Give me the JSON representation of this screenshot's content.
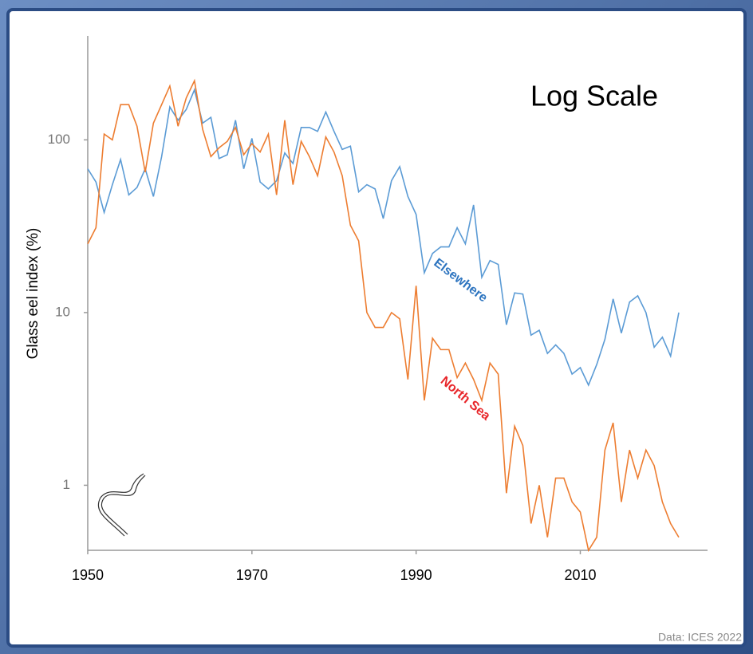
{
  "chart_data": {
    "type": "line",
    "annotation": "Log Scale",
    "y_label": "Glass eel index (%)",
    "source": "Data: ICES 2022",
    "log_y": true,
    "xlim": [
      1950,
      2025.5
    ],
    "xticks": [
      1950,
      1970,
      1990,
      2010
    ],
    "ylim": [
      0.42,
      400
    ],
    "yticks": [
      1,
      10,
      100
    ],
    "x": [
      1950,
      1951,
      1952,
      1953,
      1954,
      1955,
      1956,
      1957,
      1958,
      1959,
      1960,
      1961,
      1962,
      1963,
      1964,
      1965,
      1966,
      1967,
      1968,
      1969,
      1970,
      1971,
      1972,
      1973,
      1974,
      1975,
      1976,
      1977,
      1978,
      1979,
      1980,
      1981,
      1982,
      1983,
      1984,
      1985,
      1986,
      1987,
      1988,
      1989,
      1990,
      1991,
      1992,
      1993,
      1994,
      1995,
      1996,
      1997,
      1998,
      1999,
      2000,
      2001,
      2002,
      2003,
      2004,
      2005,
      2006,
      2007,
      2008,
      2009,
      2010,
      2011,
      2012,
      2013,
      2014,
      2015,
      2016,
      2017,
      2018,
      2019,
      2020,
      2021,
      2022
    ],
    "series": [
      {
        "name": "Elsewhere",
        "color": "#5b9bd5",
        "values": [
          68,
          57,
          38,
          55,
          77,
          48,
          53,
          68,
          47,
          80,
          155,
          130,
          150,
          195,
          125,
          135,
          78,
          82,
          130,
          68,
          102,
          57,
          52,
          58,
          84,
          73,
          118,
          118,
          112,
          145,
          112,
          88,
          92,
          50,
          55,
          52,
          35,
          58,
          70,
          47,
          37,
          17,
          22,
          24,
          24,
          31,
          25,
          42,
          16,
          20,
          19,
          8.5,
          13,
          12.8,
          7.4,
          7.9,
          5.8,
          6.5,
          5.8,
          4.4,
          4.8,
          3.8,
          5,
          7,
          12,
          7.6,
          11.5,
          12.5,
          10,
          6.3,
          7.2,
          5.6,
          10
        ]
      },
      {
        "name": "North Sea",
        "color": "#ed7d31",
        "values": [
          25,
          31,
          108,
          100,
          160,
          160,
          120,
          65,
          125,
          160,
          205,
          120,
          175,
          220,
          115,
          80,
          90,
          98,
          118,
          82,
          95,
          85,
          108,
          48,
          130,
          55,
          98,
          80,
          62,
          104,
          85,
          62,
          32,
          26,
          10,
          8.2,
          8.2,
          10,
          9.2,
          4.1,
          14.3,
          3.1,
          7.1,
          6.1,
          6.1,
          4.2,
          5.1,
          4.1,
          3.1,
          5.1,
          4.4,
          0.9,
          2.2,
          1.7,
          0.6,
          1.0,
          0.5,
          1.1,
          1.1,
          0.8,
          0.7,
          0.42,
          0.5,
          1.6,
          2.3,
          0.8,
          1.6,
          1.1,
          1.6,
          1.3,
          0.8,
          0.6,
          0.5
        ]
      }
    ]
  }
}
